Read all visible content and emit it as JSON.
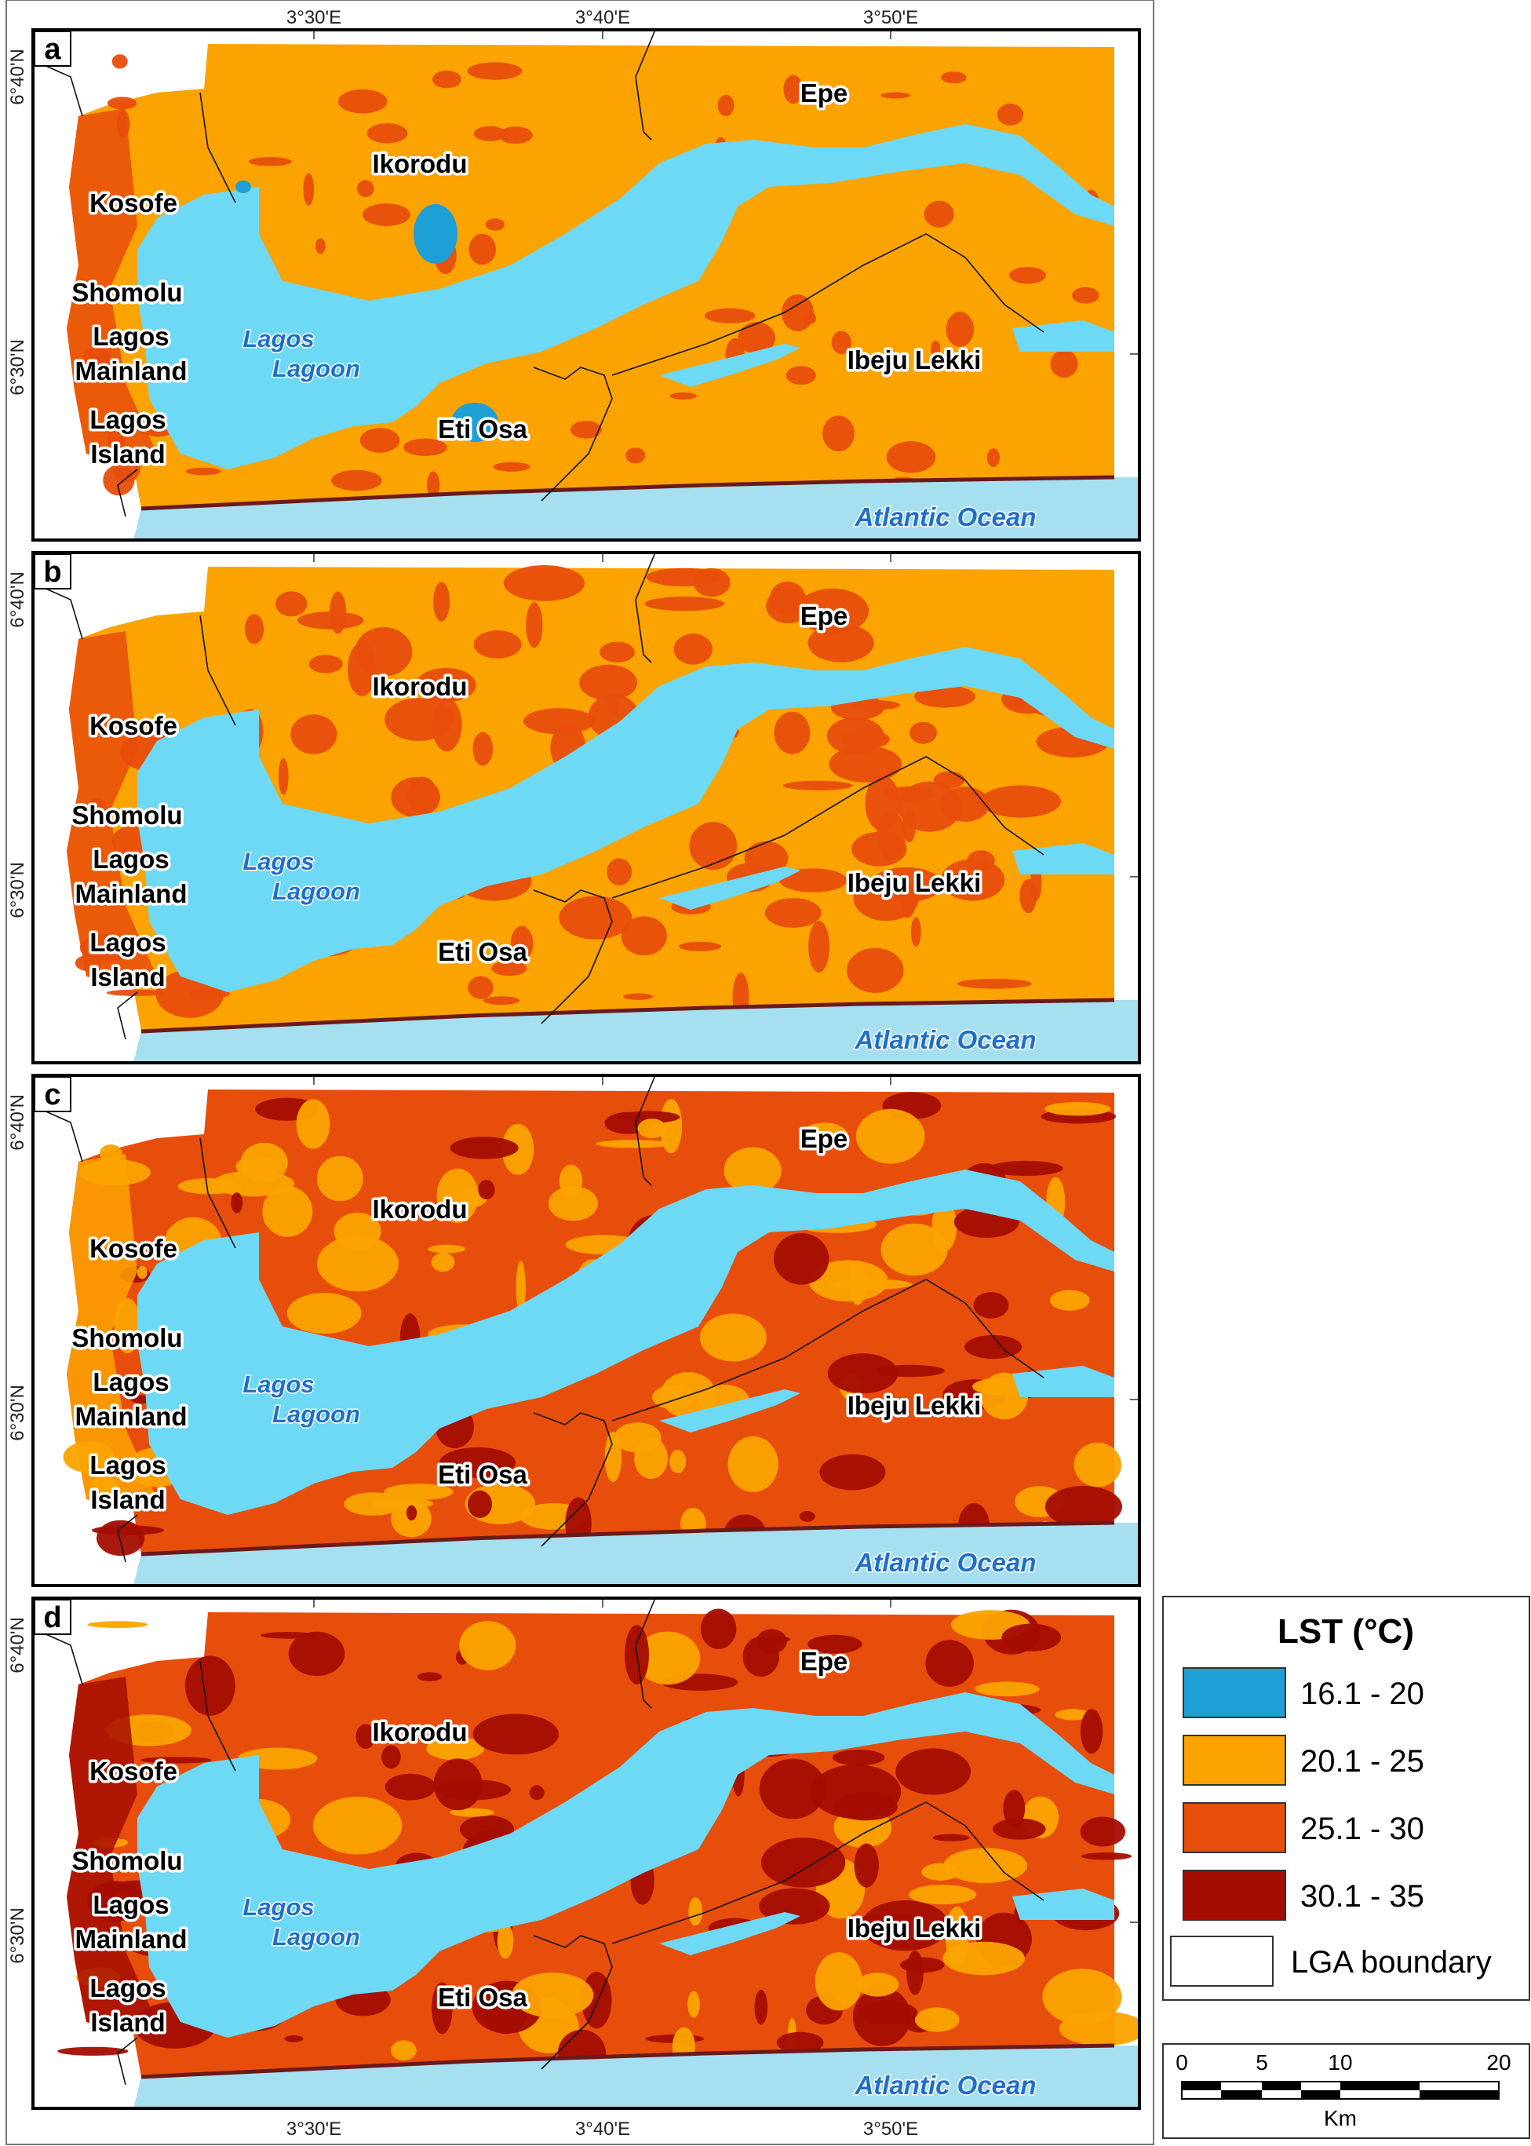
{
  "panels": [
    {
      "letter": "a",
      "dominant": "#fba300",
      "second": "#e84e0b",
      "third": "#e84e0b",
      "hot_amount": 0.15,
      "cool_patches": true
    },
    {
      "letter": "b",
      "dominant": "#fba300",
      "second": "#e84e0b",
      "third": "#e84e0b",
      "hot_amount": 0.45,
      "cool_patches": false
    },
    {
      "letter": "c",
      "dominant": "#e84e0b",
      "second": "#fba300",
      "third": "#a40d02",
      "hot_amount": 0.45,
      "cool_patches": false
    },
    {
      "letter": "d",
      "dominant": "#e84e0b",
      "second": "#a40d02",
      "third": "#fba300",
      "hot_amount": 0.55,
      "cool_patches": false
    }
  ],
  "place_labels": {
    "epe": "Epe",
    "ikorodu": "Ikorodu",
    "kosofe": "Kosofe",
    "shomolu": "Shomolu",
    "lagos_mainland_1": "Lagos",
    "lagos_mainland_2": "Mainland",
    "lagos_island_1": "Lagos",
    "lagos_island_2": "Island",
    "eti_osa": "Eti Osa",
    "ibeju_lekki": "Ibeju Lekki",
    "lagoon_1": "Lagos",
    "lagoon_2": "Lagoon",
    "ocean": "Atlantic Ocean"
  },
  "graticule": {
    "longitudes": [
      "3°30'E",
      "3°40'E",
      "3°50'E"
    ],
    "latitudes": [
      "6°40'N",
      "6°30'N"
    ]
  },
  "legend": {
    "title": "LST (°C)",
    "classes": [
      {
        "range": "16.1 - 20",
        "color": "#1e9fd6"
      },
      {
        "range": "20.1 - 25",
        "color": "#fba300"
      },
      {
        "range": "25.1 - 30",
        "color": "#e84e0b"
      },
      {
        "range": "30.1 - 35",
        "color": "#a40d02"
      }
    ],
    "boundary_label": "LGA boundary"
  },
  "scale_bar": {
    "ticks": [
      "0",
      "5",
      "10",
      "20"
    ],
    "unit": "Km"
  },
  "colors": {
    "lagoon": "#6dd9f5",
    "ocean": "#a6dff0",
    "frame": "#000000"
  }
}
